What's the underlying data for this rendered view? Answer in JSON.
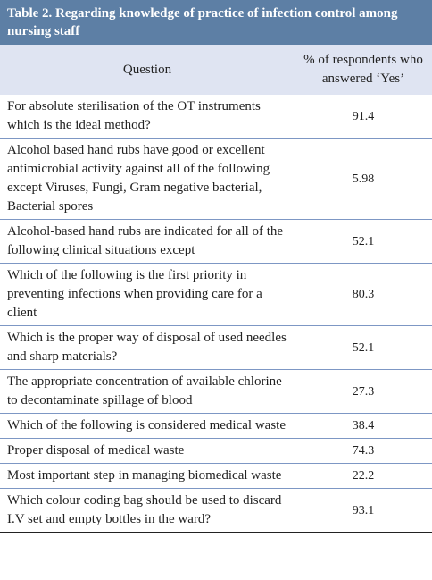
{
  "header": {
    "title": "Table 2. Regarding knowledge of practice of infection control among nursing staff"
  },
  "table": {
    "columns": [
      "Question",
      "% of respondents who answered ‘Yes’"
    ],
    "rows": [
      [
        "For absolute sterilisation of the OT instruments which is the ideal method?",
        91.4
      ],
      [
        "Alcohol based hand rubs have good or excellent antimicrobial activity against all of the following except Viruses, Fungi, Gram negative bacterial, Bacterial spores",
        5.98
      ],
      [
        "Alcohol-based hand rubs are indicated for all of the following clinical situations except",
        52.1
      ],
      [
        "Which of the following is the first priority in preventing infections when providing care for a client",
        80.3
      ],
      [
        "Which is the proper way of disposal of used needles and sharp materials?",
        52.1
      ],
      [
        "The appropriate concentration of available chlorine to decontaminate spillage of blood",
        27.3
      ],
      [
        "Which of the following is considered medical waste",
        38.4
      ],
      [
        "Proper disposal of medical waste",
        74.3
      ],
      [
        "Most important step in managing biomedical waste",
        22.2
      ],
      [
        "Which colour coding bag should be used to discard I.V set and empty bottles in the ward?",
        93.1
      ]
    ]
  }
}
